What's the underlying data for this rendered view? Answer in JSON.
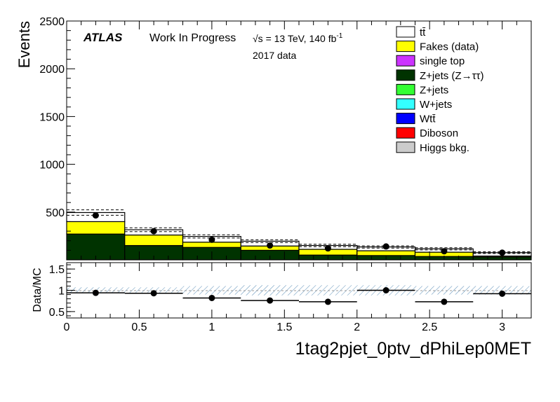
{
  "header": {
    "atlas": "ATLAS",
    "status": "Work In Progress",
    "energy": "√s = 13 TeV, 140 fb",
    "energy_sup": "-1",
    "dataset": "2017 data"
  },
  "legend": [
    {
      "label": "tt̄",
      "color": "#ffffff"
    },
    {
      "label": "Fakes (data)",
      "color": "#ffff00"
    },
    {
      "label": "single top",
      "color": "#cc33ff"
    },
    {
      "label": "Z+jets (Z→ττ)",
      "color": "#003300"
    },
    {
      "label": "Z+jets",
      "color": "#33ff33"
    },
    {
      "label": "W+jets",
      "color": "#33ffff"
    },
    {
      "label": "Wtt̄",
      "color": "#0000ff"
    },
    {
      "label": "Diboson",
      "color": "#ff0000"
    },
    {
      "label": "Higgs bkg.",
      "color": "#cccccc"
    }
  ],
  "chart_data": [
    {
      "type": "bar",
      "stacked": true,
      "ylabel": "Events",
      "xlim": [
        0,
        3.2
      ],
      "ylim": [
        0,
        2500
      ],
      "yticks": [
        500,
        1000,
        1500,
        2000,
        2500
      ],
      "bin_edges": [
        0,
        0.4,
        0.8,
        1.2,
        1.6,
        2.0,
        2.4,
        2.8,
        3.2
      ],
      "series": [
        {
          "name": "Z+jets (Z→ττ)",
          "values": [
            270,
            150,
            130,
            100,
            50,
            45,
            35,
            30
          ]
        },
        {
          "name": "Fakes (data)",
          "values": [
            130,
            110,
            55,
            45,
            60,
            50,
            45,
            10
          ]
        },
        {
          "name": "tt̄",
          "values": [
            95,
            55,
            60,
            50,
            40,
            40,
            35,
            35
          ]
        }
      ],
      "data_points": {
        "x": [
          0.2,
          0.6,
          1.0,
          1.4,
          1.8,
          2.2,
          2.6,
          3.0
        ],
        "y": [
          465,
          300,
          210,
          150,
          120,
          140,
          90,
          75
        ]
      }
    },
    {
      "type": "scatter",
      "ylabel": "Data/MC",
      "xlabel": "1tag2pjet_0ptv_dPhiLep0MET",
      "xlim": [
        0,
        3.2
      ],
      "ylim": [
        0.35,
        1.65
      ],
      "xticks": [
        "0",
        "0.5",
        "1",
        "1.5",
        "2",
        "2.5",
        "3"
      ],
      "yticks": [
        "0.5",
        "1",
        "1.5"
      ],
      "x": [
        0.2,
        0.6,
        1.0,
        1.4,
        1.8,
        2.2,
        2.6,
        3.0
      ],
      "y": [
        0.94,
        0.93,
        0.82,
        0.76,
        0.73,
        1.0,
        0.73,
        0.92
      ],
      "uncertainty_band": [
        0.07,
        0.07,
        0.1,
        0.12,
        0.12,
        0.12,
        0.1,
        0.1
      ]
    }
  ]
}
